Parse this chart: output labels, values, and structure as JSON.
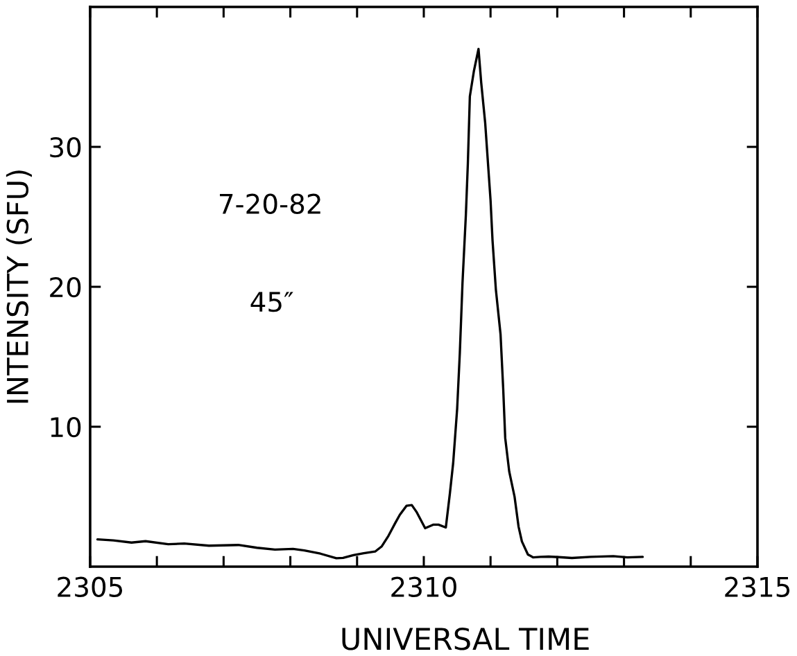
{
  "chart_data": {
    "type": "line",
    "xlabel": "UNIVERSAL TIME",
    "ylabel": "INTENSITY (SFU)",
    "annotations": [
      "7-20-82",
      "45″"
    ],
    "x": [
      2305.11,
      2305.35,
      2305.62,
      2305.83,
      2306.17,
      2306.41,
      2306.78,
      2307.22,
      2307.5,
      2307.77,
      2308.04,
      2308.21,
      2308.45,
      2308.69,
      2308.79,
      2308.96,
      2309.1,
      2309.27,
      2309.37,
      2309.47,
      2309.57,
      2309.64,
      2309.74,
      2309.82,
      2309.89,
      2310.02,
      2310.14,
      2310.22,
      2310.33,
      2310.39,
      2310.44,
      2310.5,
      2310.54,
      2310.58,
      2310.63,
      2310.66,
      2310.69,
      2310.75,
      2310.82,
      2310.86,
      2310.92,
      2311.0,
      2311.03,
      2311.08,
      2311.15,
      2311.19,
      2311.22,
      2311.28,
      2311.36,
      2311.42,
      2311.47,
      2311.56,
      2311.64,
      2311.75,
      2311.87,
      2312.02,
      2312.22,
      2312.5,
      2312.84,
      2313.05,
      2313.28
    ],
    "series": [
      {
        "color": "#000000",
        "values": [
          1.95,
          1.88,
          1.72,
          1.82,
          1.6,
          1.65,
          1.5,
          1.55,
          1.35,
          1.22,
          1.27,
          1.16,
          0.93,
          0.6,
          0.63,
          0.84,
          0.96,
          1.08,
          1.45,
          2.2,
          3.1,
          3.7,
          4.35,
          4.4,
          3.92,
          2.75,
          3.0,
          3.0,
          2.8,
          5.2,
          7.4,
          11.3,
          15.3,
          20.3,
          25.1,
          28.8,
          33.6,
          35.4,
          37.0,
          34.6,
          31.7,
          26.2,
          23.3,
          19.8,
          16.6,
          12.7,
          9.2,
          6.8,
          5.0,
          2.86,
          1.8,
          0.87,
          0.66,
          0.7,
          0.72,
          0.68,
          0.62,
          0.7,
          0.75,
          0.66,
          0.7
        ]
      }
    ],
    "xlim": [
      2305,
      2315
    ],
    "xticks": [
      2305,
      {
        "value": 2306,
        "label": null
      },
      {
        "value": 2307,
        "label": null
      },
      {
        "value": 2308,
        "label": null
      },
      {
        "value": 2309,
        "label": null
      },
      2310,
      {
        "value": 2311,
        "label": null
      },
      {
        "value": 2312,
        "label": null
      },
      {
        "value": 2313,
        "label": null
      },
      {
        "value": 2314,
        "label": null
      },
      2315
    ],
    "ylim": [
      0,
      40
    ],
    "yticks": [
      10,
      20,
      30
    ],
    "grid": false,
    "line_style": "solid"
  }
}
